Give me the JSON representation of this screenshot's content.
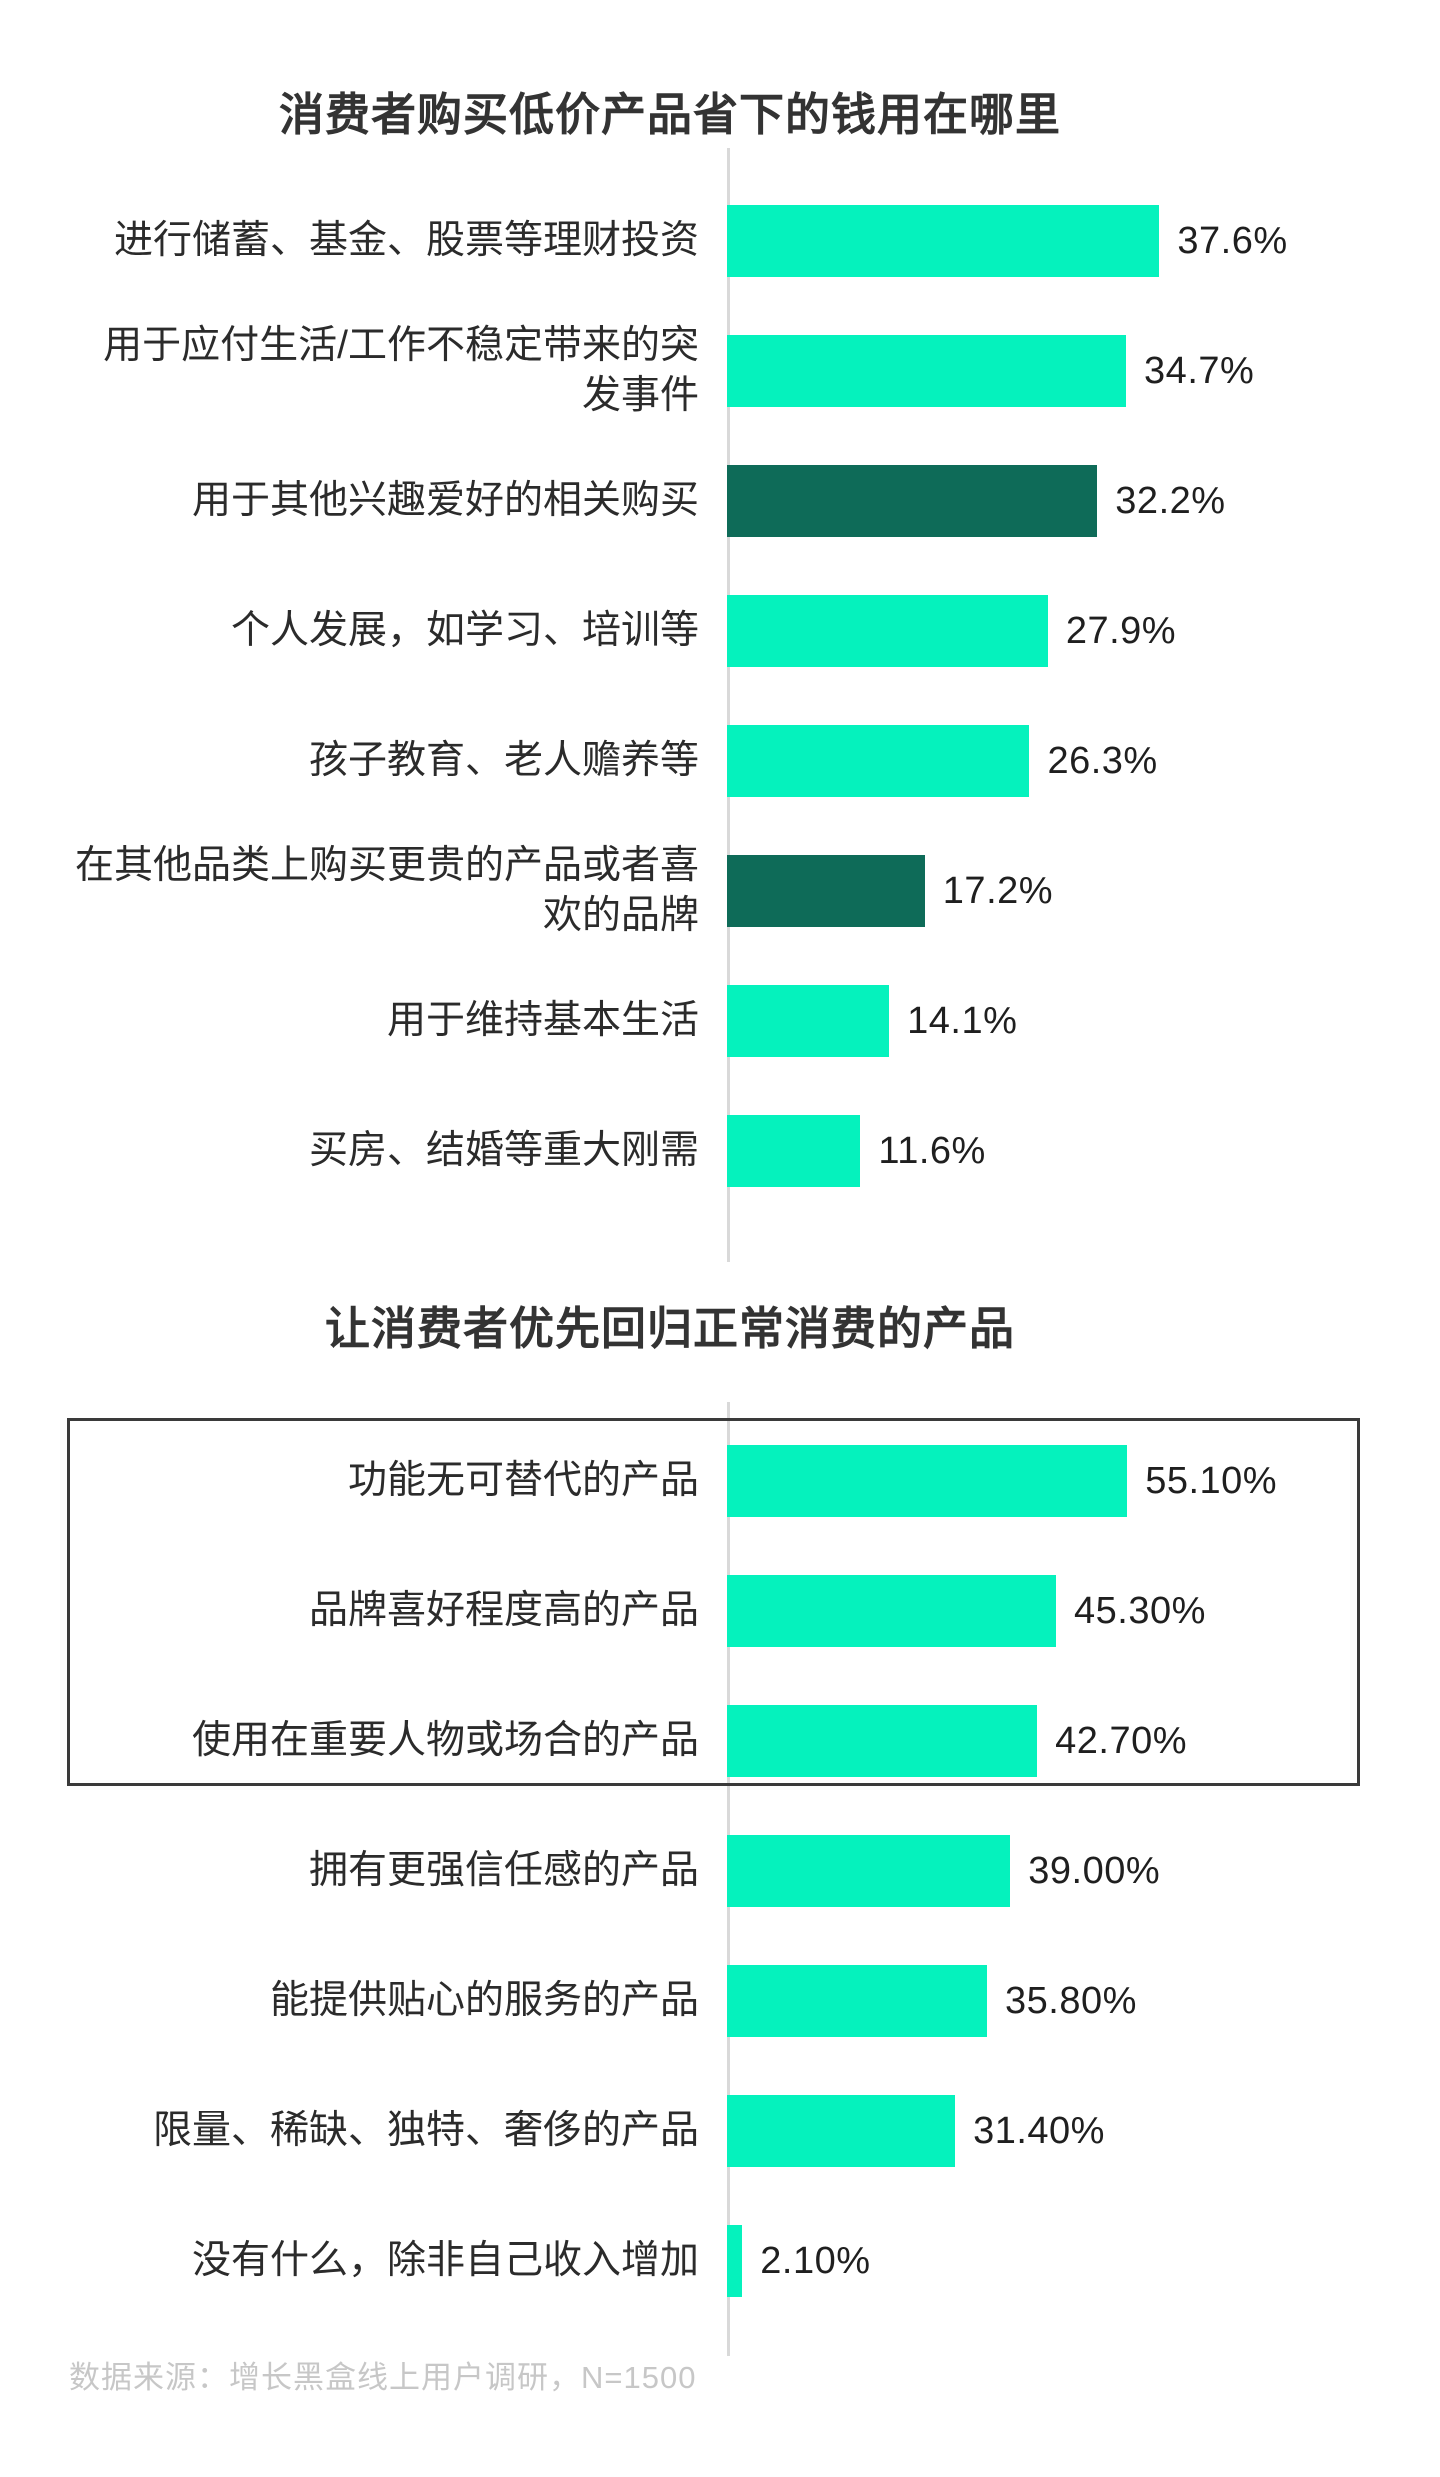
{
  "colors": {
    "bar_bright": "#05F2BD",
    "bar_dark": "#0E6B58",
    "axis_line": "#D9D9D9",
    "title_text": "#333333",
    "label_text": "#2B2B2B",
    "value_text": "#1F1F1F",
    "highlight_box_border": "#3A3A3A",
    "footer_text": "#C7C7C7",
    "background": "#FFFFFF"
  },
  "footer": {
    "source_note": "数据来源：增长黑盒线上用户调研，N=1500"
  },
  "chart_data": [
    {
      "type": "bar",
      "orientation": "horizontal",
      "title": "消费者购买低价产品省下的钱用在哪里",
      "categories": [
        "进行储蓄、基金、股票等理财投资",
        "用于应付生活/工作不稳定带来的突发事件",
        "用于其他兴趣爱好的相关购买",
        "个人发展，如学习、培训等",
        "孩子教育、老人赡养等",
        "在其他品类上购买更贵的产品或者喜欢的品牌",
        "用于维持基本生活",
        "买房、结婚等重大刚需"
      ],
      "values": [
        37.6,
        34.7,
        32.2,
        27.9,
        26.3,
        17.2,
        14.1,
        11.6
      ],
      "value_labels": [
        "37.6%",
        "34.7%",
        "32.2%",
        "27.9%",
        "26.3%",
        "17.2%",
        "14.1%",
        "11.6%"
      ],
      "bar_colors": [
        "bright",
        "bright",
        "dark",
        "bright",
        "bright",
        "dark",
        "bright",
        "bright"
      ],
      "xlim": [
        0,
        60
      ],
      "grid": false,
      "legend": false,
      "value_labels_position": "right-of-bar"
    },
    {
      "type": "bar",
      "orientation": "horizontal",
      "title": "让消费者优先回归正常消费的产品",
      "categories": [
        "功能无可替代的产品",
        "品牌喜好程度高的产品",
        "使用在重要人物或场合的产品",
        "拥有更强信任感的产品",
        "能提供贴心的服务的产品",
        "限量、稀缺、独特、奢侈的产品",
        "没有什么，除非自己收入增加"
      ],
      "values": [
        55.1,
        45.3,
        42.7,
        39.0,
        35.8,
        31.4,
        2.1
      ],
      "value_labels": [
        "55.10%",
        "45.30%",
        "42.70%",
        "39.00%",
        "35.80%",
        "31.40%",
        "2.10%"
      ],
      "bar_colors": [
        "bright",
        "bright",
        "bright",
        "bright",
        "bright",
        "bright",
        "bright"
      ],
      "xlim": [
        0,
        95
      ],
      "highlight_box_rows": [
        0,
        1,
        2
      ],
      "grid": false,
      "legend": false,
      "value_labels_position": "right-of-bar"
    }
  ]
}
